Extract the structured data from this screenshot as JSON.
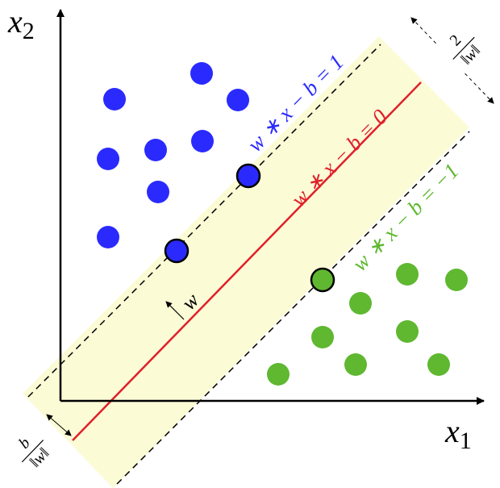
{
  "axes": {
    "x": {
      "symbol": "x",
      "subscript": "1"
    },
    "y": {
      "symbol": "x",
      "subscript": "2"
    }
  },
  "hyperplanes": [
    {
      "label": "w ∗ x − b = 1",
      "color": "#2a2aff"
    },
    {
      "label": "w ∗ x − b = 0",
      "color": "#e0202a"
    },
    {
      "label": "w ∗ x − b = −1",
      "color": "#5fb830"
    }
  ],
  "normal_label": "w",
  "margin_label": {
    "numerator": "2",
    "denominator": "‖w‖"
  },
  "offset_label": {
    "numerator": "b",
    "denominator": "‖w‖"
  }
}
